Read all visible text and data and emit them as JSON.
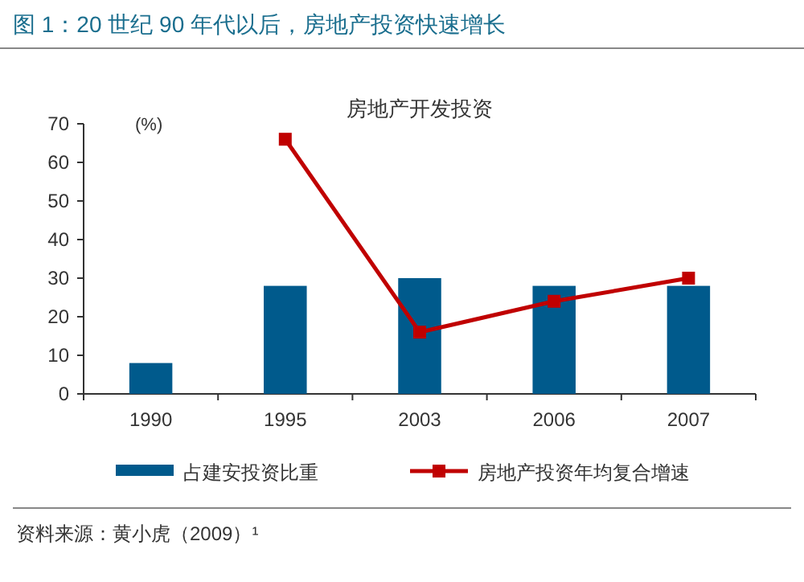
{
  "chart_data": {
    "type": "bar",
    "title": "图 1：20 世纪 90 年代以后，房地产投资快速增长",
    "subtitle": "房地产开发投资",
    "ylabel": "(%)",
    "categories": [
      "1990",
      "1995",
      "2003",
      "2006",
      "2007"
    ],
    "series": [
      {
        "name": "占建安投资比重",
        "color": "#005a8c",
        "values": [
          8,
          28,
          30,
          28,
          28
        ]
      },
      {
        "name": "房地产投资年均复合增速",
        "type": "line",
        "color": "#c00000",
        "marker": "square",
        "values": [
          null,
          66,
          16,
          24,
          30
        ]
      }
    ],
    "ylim": [
      0,
      70
    ],
    "yticks": [
      0,
      10,
      20,
      30,
      40,
      50,
      60,
      70
    ],
    "legend": "bottom",
    "annotations": [
      "资料来源：黄小虎（2009）¹"
    ]
  }
}
